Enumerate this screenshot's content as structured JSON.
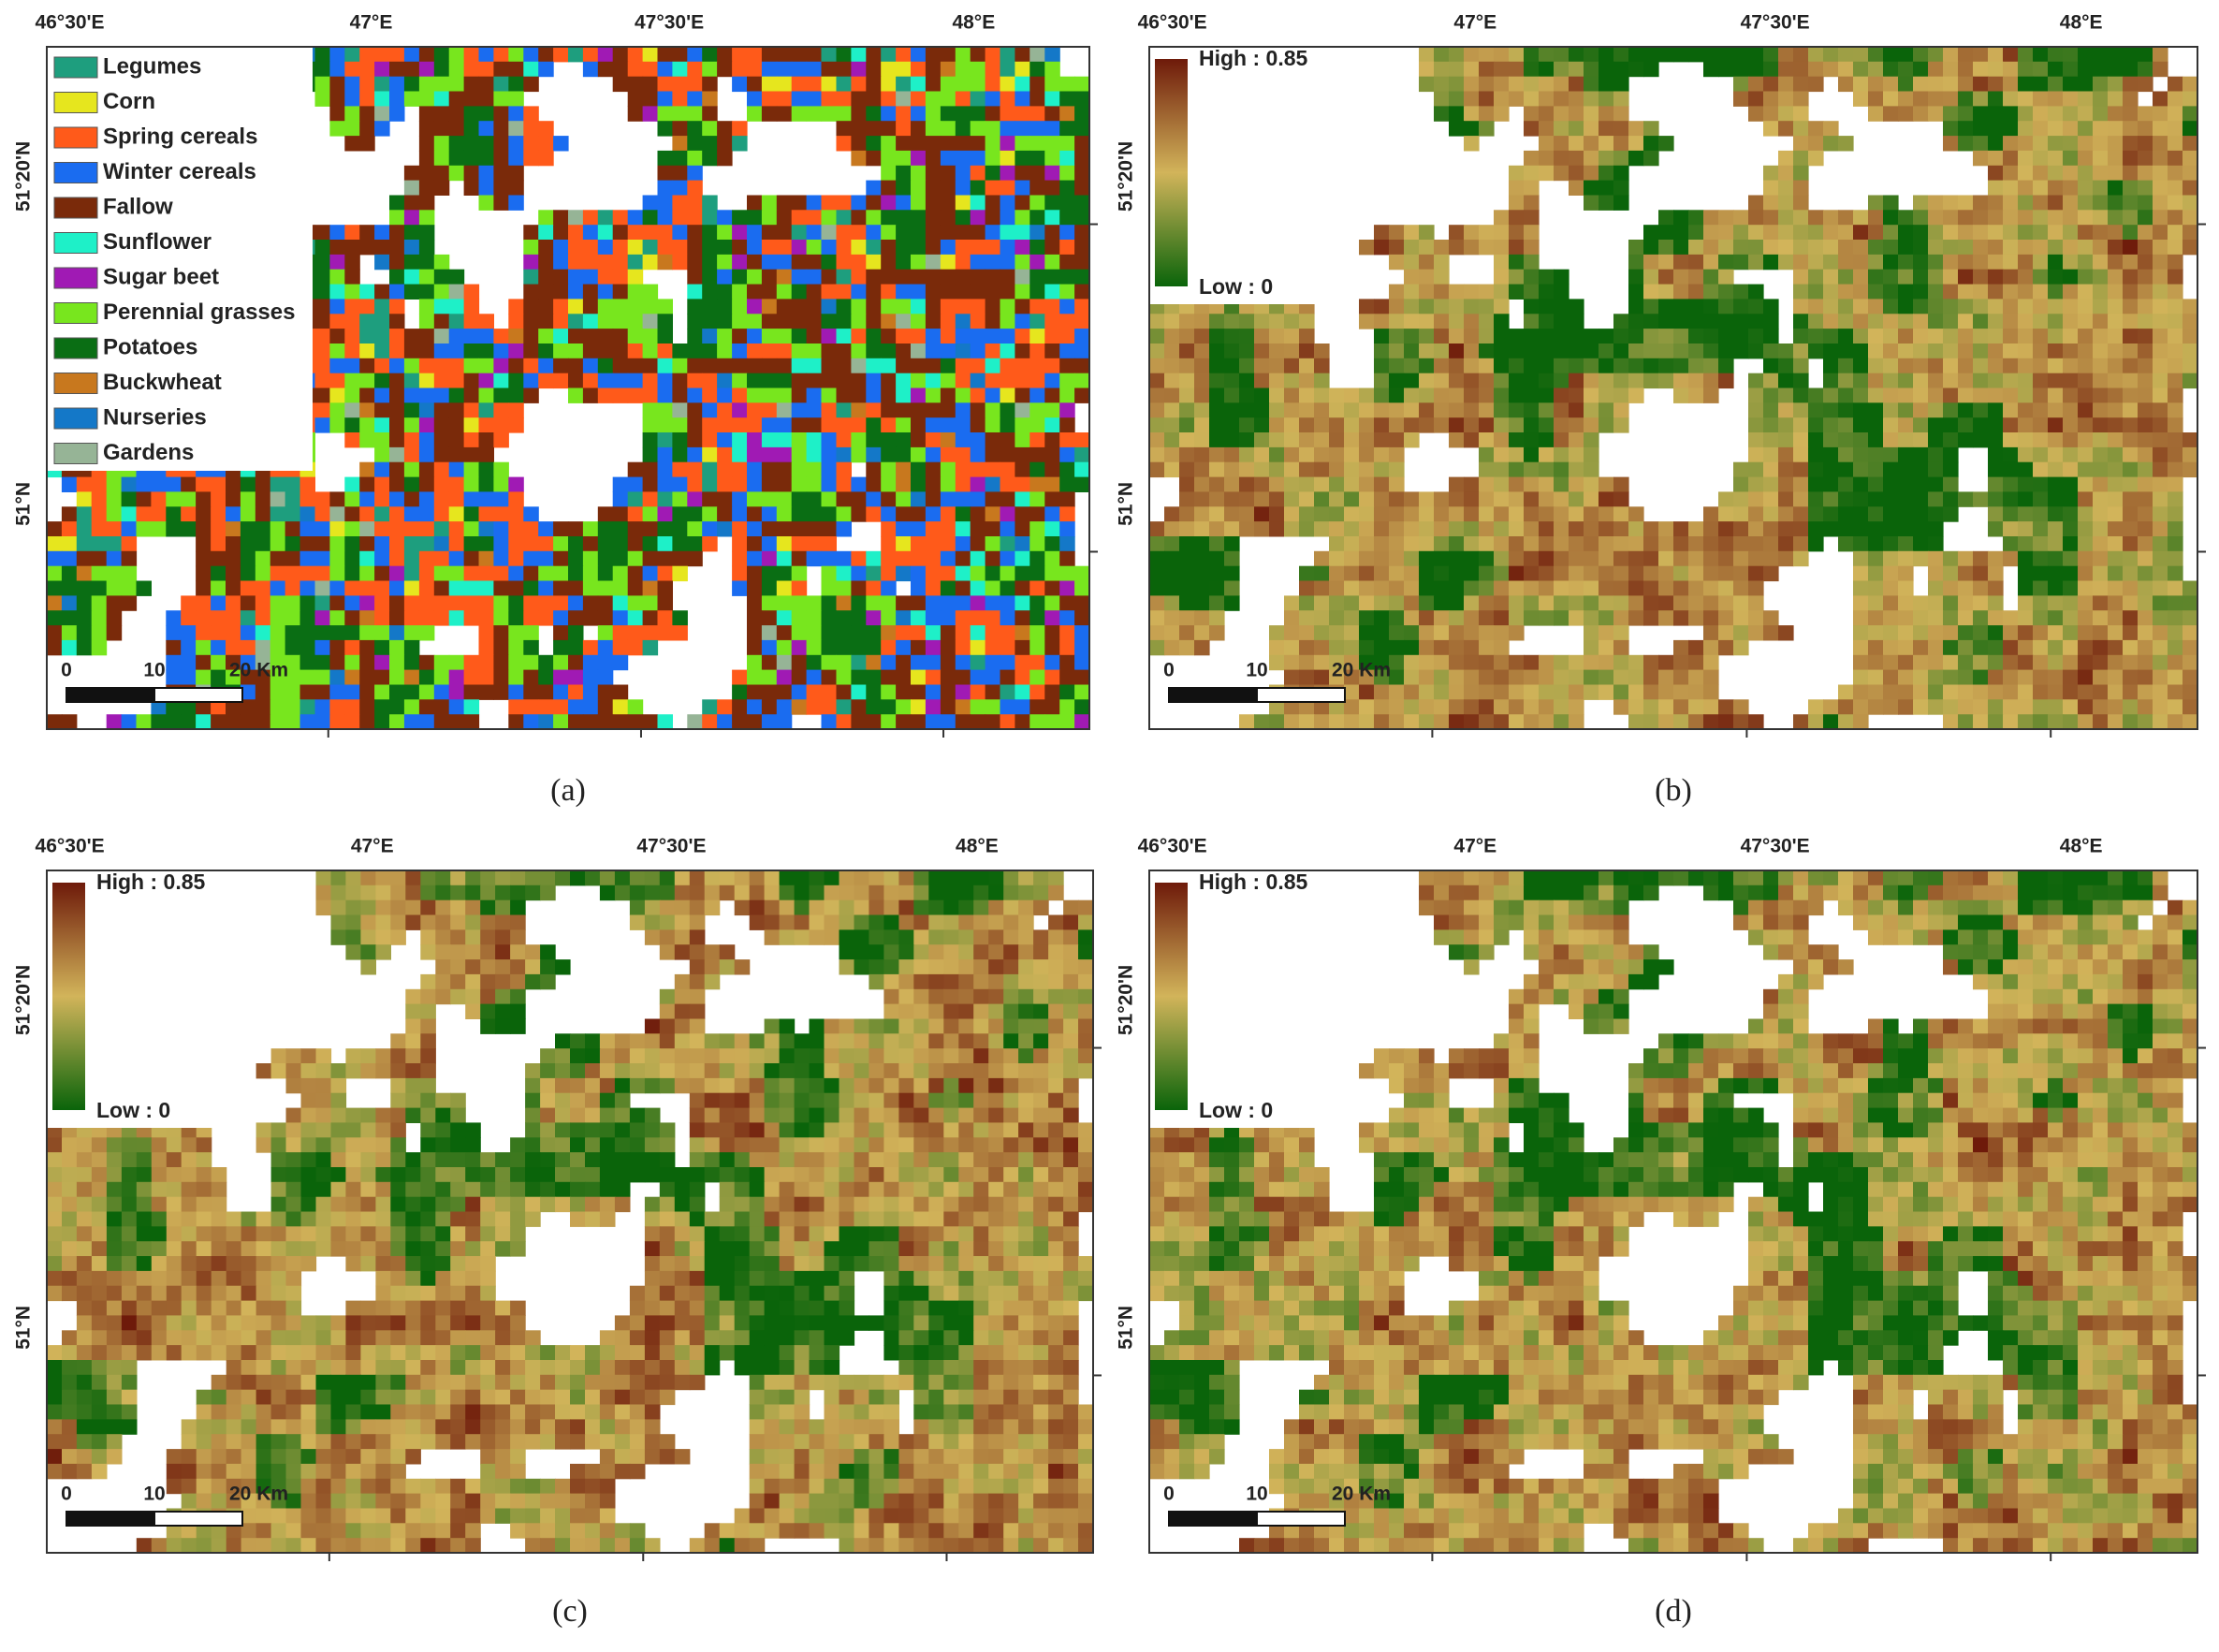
{
  "panels": [
    {
      "caption": "(a)",
      "lon_labels": [
        "46°30'E",
        "47°E",
        "47°30'E",
        "48°E"
      ],
      "lat_labels": [
        "51°20'N",
        "51°N"
      ],
      "scale_bar": [
        "0",
        "10",
        "20 Km"
      ],
      "legend": [
        {
          "name": "Legumes",
          "color": "#1e9e7e"
        },
        {
          "name": "Corn",
          "color": "#e6e61e"
        },
        {
          "name": "Spring cereals",
          "color": "#ff5a1a"
        },
        {
          "name": "Winter cereals",
          "color": "#1a6cf0"
        },
        {
          "name": "Fallow",
          "color": "#7a2a0a"
        },
        {
          "name": "Sunflower",
          "color": "#1ef0c8"
        },
        {
          "name": "Sugar beet",
          "color": "#a01ab4"
        },
        {
          "name": "Perennial grasses",
          "color": "#78e61e"
        },
        {
          "name": "Potatoes",
          "color": "#0a6e14"
        },
        {
          "name": "Buckwheat",
          "color": "#c8781e"
        },
        {
          "name": "Nurseries",
          "color": "#1478c8"
        },
        {
          "name": "Gardens",
          "color": "#96b496"
        }
      ]
    },
    {
      "caption": "(b)",
      "lon_labels": [
        "46°30'E",
        "47°E",
        "47°30'E",
        "48°E"
      ],
      "lat_labels": [
        "51°20'N",
        "51°N"
      ],
      "scale_bar": [
        "0",
        "10",
        "20 Km"
      ],
      "colorbar": {
        "high": "High : 0.85",
        "low": "Low : 0",
        "colors": [
          "#6e1a0a",
          "#d2b45a",
          "#0a640a"
        ]
      }
    },
    {
      "caption": "(c)",
      "lon_labels": [
        "46°30'E",
        "47°E",
        "47°30'E",
        "48°E"
      ],
      "lat_labels": [
        "51°20'N",
        "51°N"
      ],
      "scale_bar": [
        "0",
        "10",
        "20 Km"
      ],
      "colorbar": {
        "high": "High : 0.85",
        "low": "Low : 0",
        "colors": [
          "#6e1a0a",
          "#d2b45a",
          "#0a640a"
        ]
      }
    },
    {
      "caption": "(d)",
      "lon_labels": [
        "46°30'E",
        "47°E",
        "47°30'E",
        "48°E"
      ],
      "lat_labels": [
        "51°20'N",
        "51°N"
      ],
      "scale_bar": [
        "0",
        "10",
        "20 Km"
      ],
      "colorbar": {
        "high": "High : 0.85",
        "low": "Low : 0",
        "colors": [
          "#6e1a0a",
          "#d2b45a",
          "#0a640a"
        ]
      }
    }
  ]
}
